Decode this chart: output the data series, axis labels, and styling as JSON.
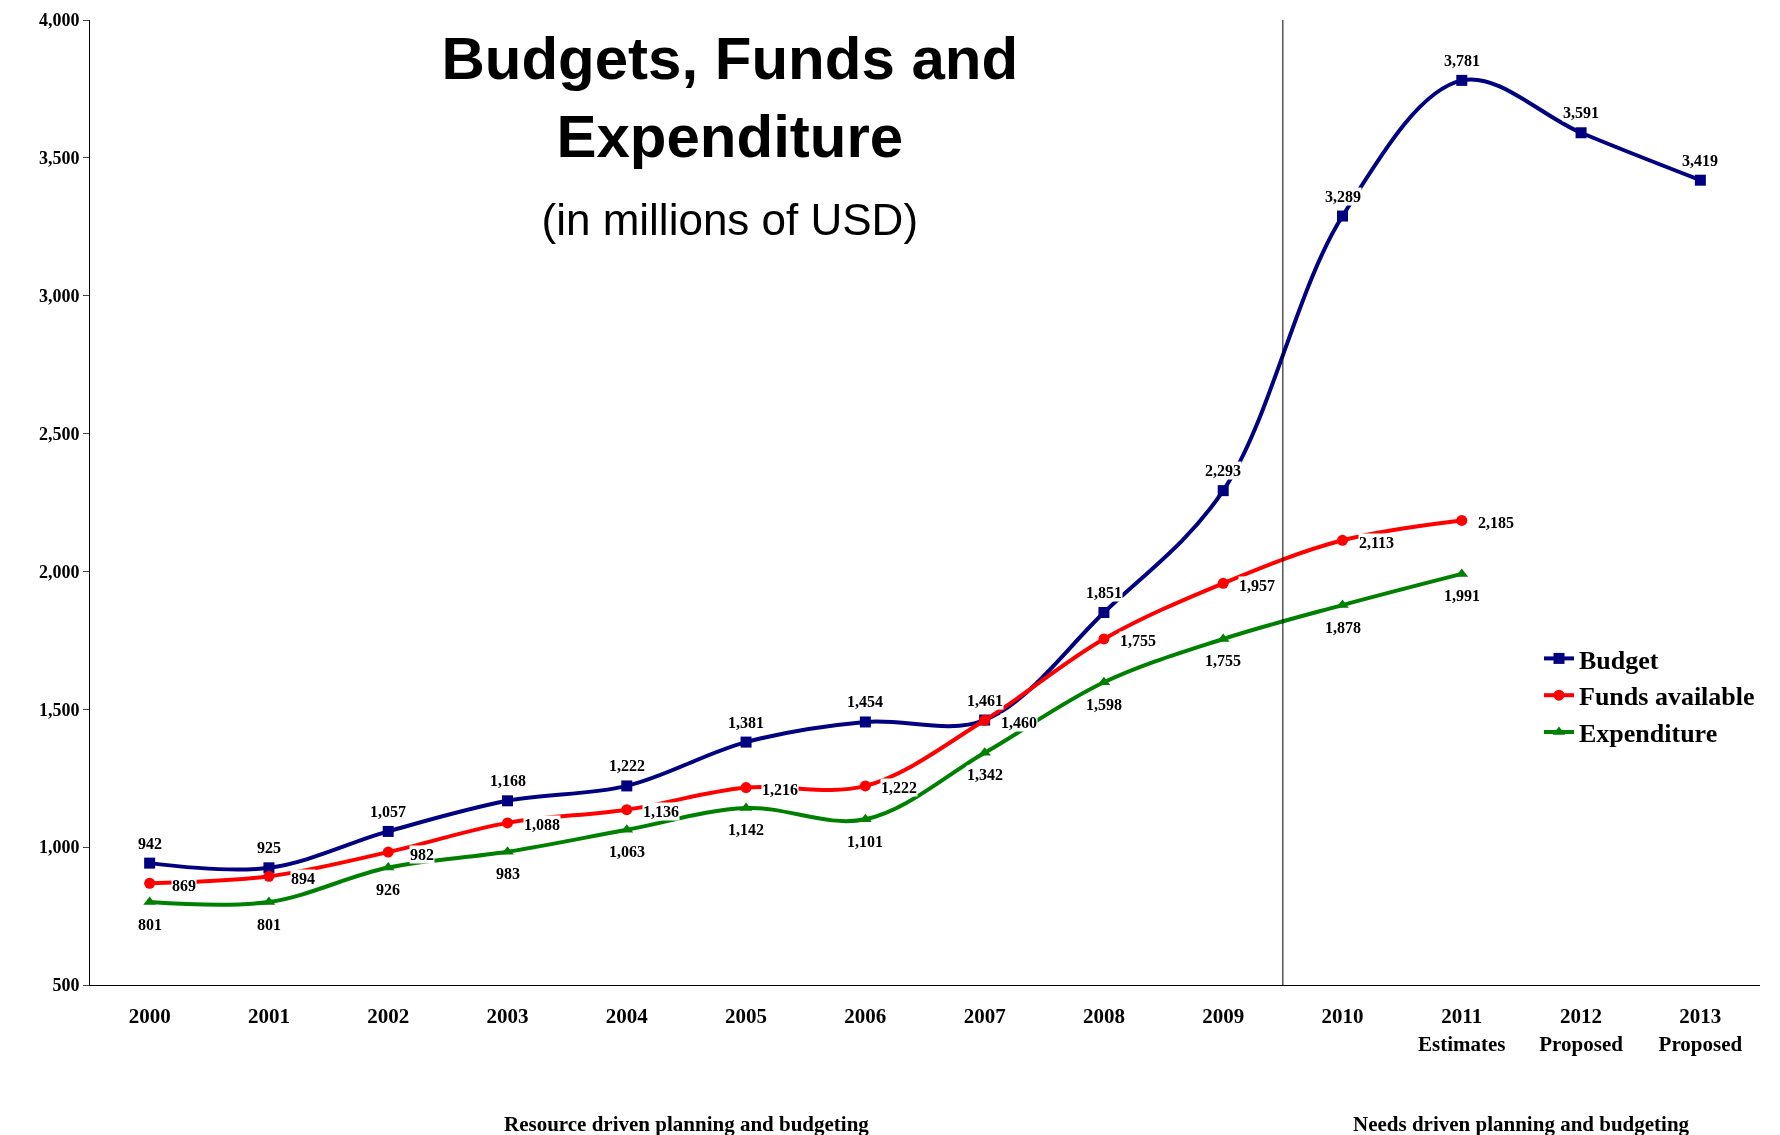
{
  "chart_data": {
    "type": "line",
    "title": "Budgets, Funds and Expenditure",
    "subtitle": "(in millions of USD)",
    "categories": [
      "2000",
      "2001",
      "2002",
      "2003",
      "2004",
      "2005",
      "2006",
      "2007",
      "2008",
      "2009",
      "2010",
      "2011\nEstimates",
      "2012\nProposed",
      "2013\nProposed"
    ],
    "series": [
      {
        "name": "Budget",
        "color": "#000080",
        "marker": "square",
        "values": [
          942,
          925,
          1057,
          1168,
          1222,
          1381,
          1454,
          1461,
          1851,
          2293,
          3289,
          3781,
          3591,
          3419
        ],
        "value_labels": [
          "942",
          "925",
          "1,057",
          "1,168",
          "1,222",
          "1,381",
          "1,454",
          "1,461",
          "1,851",
          "2,293",
          "3,289",
          "3,781",
          "3,591",
          "3,419"
        ]
      },
      {
        "name": "Funds available",
        "color": "#ff0000",
        "marker": "circle",
        "values": [
          869,
          894,
          982,
          1088,
          1136,
          1216,
          1222,
          1460,
          1755,
          1957,
          2113,
          2185,
          null,
          null
        ],
        "value_labels": [
          "869",
          "894",
          "982",
          "1,088",
          "1,136",
          "1,216",
          "1,222",
          "1,460",
          "1,755",
          "1,957",
          "2,113",
          "2,185",
          null,
          null
        ]
      },
      {
        "name": "Expenditure",
        "color": "#008000",
        "marker": "triangle",
        "values": [
          801,
          801,
          926,
          983,
          1063,
          1142,
          1101,
          1342,
          1598,
          1755,
          1878,
          1991,
          null,
          null
        ],
        "value_labels": [
          "801",
          "801",
          "926",
          "983",
          "1,063",
          "1,142",
          "1,101",
          "1,342",
          "1,598",
          "1,755",
          "1,878",
          "1,991",
          null,
          null
        ]
      }
    ],
    "ylim": [
      500,
      4000
    ],
    "yticks": [
      500,
      {
        "value": 1000,
        "label": "1,000"
      },
      {
        "value": 1500,
        "label": "1,500"
      },
      {
        "value": 2000,
        "label": "2,000"
      },
      {
        "value": 2500,
        "label": "2,500"
      },
      {
        "value": 3000,
        "label": "3,000"
      },
      {
        "value": 3500,
        "label": "3,500"
      },
      {
        "value": 4000,
        "label": "4,000"
      }
    ],
    "annotations": [
      "Resource driven planning and budgeting",
      "Needs driven planning and budgeting"
    ],
    "legend": "right",
    "grid": false,
    "line_style": "solid"
  }
}
